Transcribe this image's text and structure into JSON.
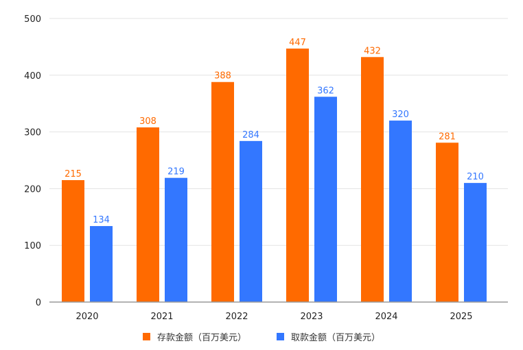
{
  "chart_data": {
    "type": "bar",
    "categories": [
      "2020",
      "2021",
      "2022",
      "2023",
      "2024",
      "2025"
    ],
    "series": [
      {
        "name": "存款金额（百万美元）",
        "color": "#FF6A00",
        "values": [
          215,
          308,
          388,
          447,
          432,
          281
        ]
      },
      {
        "name": "取款金额（百万美元）",
        "color": "#3377FF",
        "values": [
          134,
          219,
          284,
          362,
          320,
          210
        ]
      }
    ],
    "yticks": [
      0,
      100,
      200,
      300,
      400,
      500
    ],
    "ylim": [
      0,
      500
    ],
    "title": "",
    "xlabel": "",
    "ylabel": "",
    "legend_position": "bottom",
    "grid": true
  }
}
